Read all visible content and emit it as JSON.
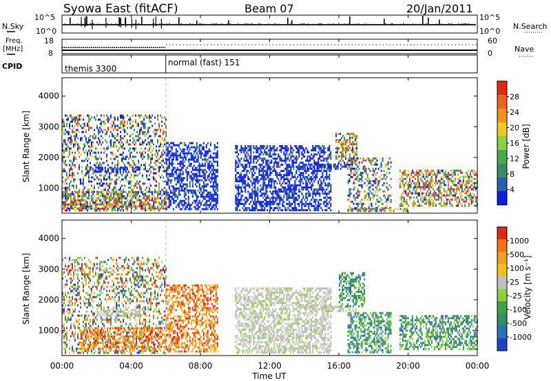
{
  "header": {
    "station": "Syowa East (fitACF)",
    "beam": "Beam 07",
    "date": "20/Jan/2011"
  },
  "aux": {
    "nsky_label": "N.Sky",
    "nsearch_label": "N.Search",
    "noise_ticks": [
      "10^5",
      "10^0"
    ],
    "freq_label_1": "Freq.",
    "freq_label_2": "[MHz]",
    "freq_ticks": [
      "18",
      "8"
    ],
    "nave_label": "Nave",
    "nave_ticks": [
      "60",
      "0"
    ],
    "cpid_label": "CPID",
    "cpid_modes": [
      {
        "name": "themis 3300",
        "start_hour": 0,
        "end_hour": 6
      },
      {
        "name": "normal (fast) 151",
        "start_hour": 6,
        "end_hour": 24
      }
    ]
  },
  "chart_data": [
    {
      "type": "heatmap",
      "name": "power",
      "ylabel": "Slant Range [km]",
      "ylim": [
        180,
        4600
      ],
      "yticks": [
        "1000",
        "2000",
        "3000",
        "4000"
      ],
      "xlim": [
        0,
        24
      ],
      "colorbar_label": "Power [dB]",
      "colorbar_ticks": [
        "4",
        "8",
        "12",
        "16",
        "20",
        "24",
        "28"
      ],
      "colors": [
        "#0a1fd8",
        "#2a5fb0",
        "#3a8a6a",
        "#4aa84a",
        "#8cd048",
        "#f0c820",
        "#f09020",
        "#f06020",
        "#e02818"
      ],
      "echo_regions": [
        {
          "t": [
            0,
            6
          ],
          "r": [
            300,
            3400
          ],
          "level": "mixed"
        },
        {
          "t": [
            1.5,
            4.5
          ],
          "r": [
            1500,
            1700
          ],
          "level": "low"
        },
        {
          "t": [
            0,
            6
          ],
          "r": [
            300,
            900
          ],
          "level": "high"
        },
        {
          "t": [
            6,
            9
          ],
          "r": [
            300,
            2500
          ],
          "level": "low"
        },
        {
          "t": [
            10,
            15.5
          ],
          "r": [
            300,
            2400
          ],
          "level": "low"
        },
        {
          "t": [
            14,
            17
          ],
          "r": [
            1600,
            1800
          ],
          "level": "low"
        },
        {
          "t": [
            15.8,
            17
          ],
          "r": [
            1800,
            2800
          ],
          "level": "high"
        },
        {
          "t": [
            16.5,
            19
          ],
          "r": [
            300,
            2000
          ],
          "level": "mixed"
        },
        {
          "t": [
            16.5,
            20
          ],
          "r": [
            250,
            350
          ],
          "level": "high"
        },
        {
          "t": [
            19.5,
            24
          ],
          "r": [
            400,
            1600
          ],
          "level": "high"
        }
      ]
    },
    {
      "type": "heatmap",
      "name": "velocity",
      "xlabel": "Time UT",
      "ylabel": "Slant Range [km]",
      "ylim": [
        180,
        4600
      ],
      "yticks": [
        "1000",
        "2000",
        "3000",
        "4000"
      ],
      "xlim": [
        0,
        24
      ],
      "xticks": [
        "00:00",
        "04:00",
        "08:00",
        "12:00",
        "16:00",
        "20:00",
        "00:00"
      ],
      "colorbar_label": "Velocity [m s⁻¹]",
      "colorbar_ticks": [
        "1000",
        "500",
        "100",
        "25",
        "-25",
        "-100",
        "-500",
        "-1000"
      ],
      "colors": [
        "#2040c8",
        "#2a70b8",
        "#3a8a6a",
        "#40a048",
        "#8cd040",
        "#c0c0c0",
        "#f0c020",
        "#f0a020",
        "#f07018",
        "#e02818"
      ],
      "echo_regions": [
        {
          "t": [
            0,
            6
          ],
          "r": [
            300,
            3400
          ],
          "level": "mixed"
        },
        {
          "t": [
            1,
            6
          ],
          "r": [
            300,
            1100
          ],
          "level": "negative"
        },
        {
          "t": [
            2,
            4.5
          ],
          "r": [
            1450,
            1700
          ],
          "level": "zero"
        },
        {
          "t": [
            6,
            9
          ],
          "r": [
            300,
            2500
          ],
          "level": "negative"
        },
        {
          "t": [
            10,
            15.5
          ],
          "r": [
            300,
            2400
          ],
          "level": "zero"
        },
        {
          "t": [
            14,
            17
          ],
          "r": [
            1600,
            1800
          ],
          "level": "zero"
        },
        {
          "t": [
            16,
            17.5
          ],
          "r": [
            1800,
            2900
          ],
          "level": "positive"
        },
        {
          "t": [
            16.5,
            19
          ],
          "r": [
            300,
            1600
          ],
          "level": "positive"
        },
        {
          "t": [
            19.5,
            24
          ],
          "r": [
            400,
            1500
          ],
          "level": "positive"
        }
      ]
    }
  ]
}
